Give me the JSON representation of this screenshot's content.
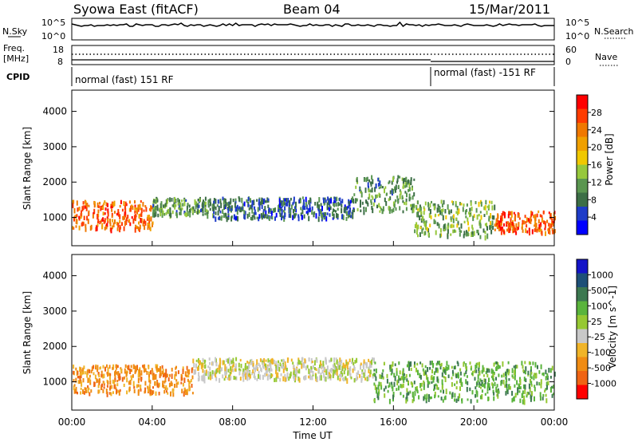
{
  "header": {
    "station": "Syowa East (fitACF)",
    "beam": "Beam 04",
    "date": "15/Mar/2011"
  },
  "strips": {
    "noise_left": "N.Sky",
    "noise_right": "N.Search",
    "noise_ticks_left": [
      "10^5",
      "10^0"
    ],
    "noise_ticks_right": [
      "10^5",
      "10^0"
    ],
    "freq_left_1": "Freq.",
    "freq_left_2": "[MHz]",
    "freq_ticks_left": [
      "18",
      "8"
    ],
    "freq_ticks_right": [
      "60",
      "0"
    ],
    "nave_right": "Nave",
    "cpid_label": "CPID",
    "cpid_modes": [
      {
        "label": "normal (fast) 151 RF",
        "start": "00:00",
        "end": "18:00"
      },
      {
        "label": "normal (fast) -151 RF",
        "start": "18:00",
        "end": "24:00"
      }
    ]
  },
  "colors": {
    "power_scale": [
      "#0000ff",
      "#1e3cc8",
      "#3c6e46",
      "#5a9650",
      "#96c83c",
      "#f0c800",
      "#f0a000",
      "#f07800",
      "#ff3c00",
      "#ff0000"
    ],
    "velocity_scale": [
      "#1414c8",
      "#1e5078",
      "#3c7850",
      "#5ab43c",
      "#96c832",
      "#c8c8c8",
      "#f0b428",
      "#f08c14",
      "#f06414",
      "#ff0000"
    ]
  },
  "chart_data": [
    {
      "type": "heatmap",
      "panel": "power",
      "ylabel": "Slant Range [km]",
      "yticks": [
        "1000",
        "2000",
        "3000",
        "4000"
      ],
      "ylim": [
        200,
        4600
      ],
      "xlim": [
        "00:00",
        "24:00"
      ],
      "colorbar": {
        "label": "Power [dB]",
        "ticks": [
          "4",
          "8",
          "12",
          "16",
          "20",
          "24",
          "28"
        ],
        "range": [
          0,
          32
        ]
      },
      "echo_bands": [
        {
          "start_h": 0,
          "end_h": 4,
          "range_km": [
            700,
            1500
          ],
          "level_db": 26
        },
        {
          "start_h": 4,
          "end_h": 7,
          "range_km": [
            1100,
            1600
          ],
          "level_db": 10
        },
        {
          "start_h": 7,
          "end_h": 14,
          "range_km": [
            1000,
            1600
          ],
          "level_db": 6
        },
        {
          "start_h": 14,
          "end_h": 17,
          "range_km": [
            1200,
            2200
          ],
          "level_db": 10
        },
        {
          "start_h": 17,
          "end_h": 21,
          "range_km": [
            500,
            1500
          ],
          "level_db": 12
        },
        {
          "start_h": 21,
          "end_h": 24,
          "range_km": [
            600,
            1200
          ],
          "level_db": 27
        }
      ]
    },
    {
      "type": "heatmap",
      "panel": "velocity",
      "ylabel": "Slant Range [km]",
      "yticks": [
        "1000",
        "2000",
        "3000",
        "4000"
      ],
      "ylim": [
        200,
        4600
      ],
      "xlim": [
        "00:00",
        "24:00"
      ],
      "xticks": [
        "00:00",
        "04:00",
        "08:00",
        "12:00",
        "16:00",
        "20:00",
        "00:00"
      ],
      "xlabel": "Time UT",
      "colorbar": {
        "label": "Velocity [m s^-1]",
        "ticks": [
          "1000",
          "500",
          "100",
          "25",
          "-25",
          "-100",
          "-500",
          "-1000"
        ]
      },
      "echo_bands": [
        {
          "start_h": 0,
          "end_h": 6,
          "range_km": [
            700,
            1500
          ],
          "velocity": "-100 to -500"
        },
        {
          "start_h": 6,
          "end_h": 15,
          "range_km": [
            1100,
            1700
          ],
          "velocity": "-25 to 25"
        },
        {
          "start_h": 15,
          "end_h": 24,
          "range_km": [
            500,
            1600
          ],
          "velocity": "100 to 500"
        }
      ]
    }
  ]
}
